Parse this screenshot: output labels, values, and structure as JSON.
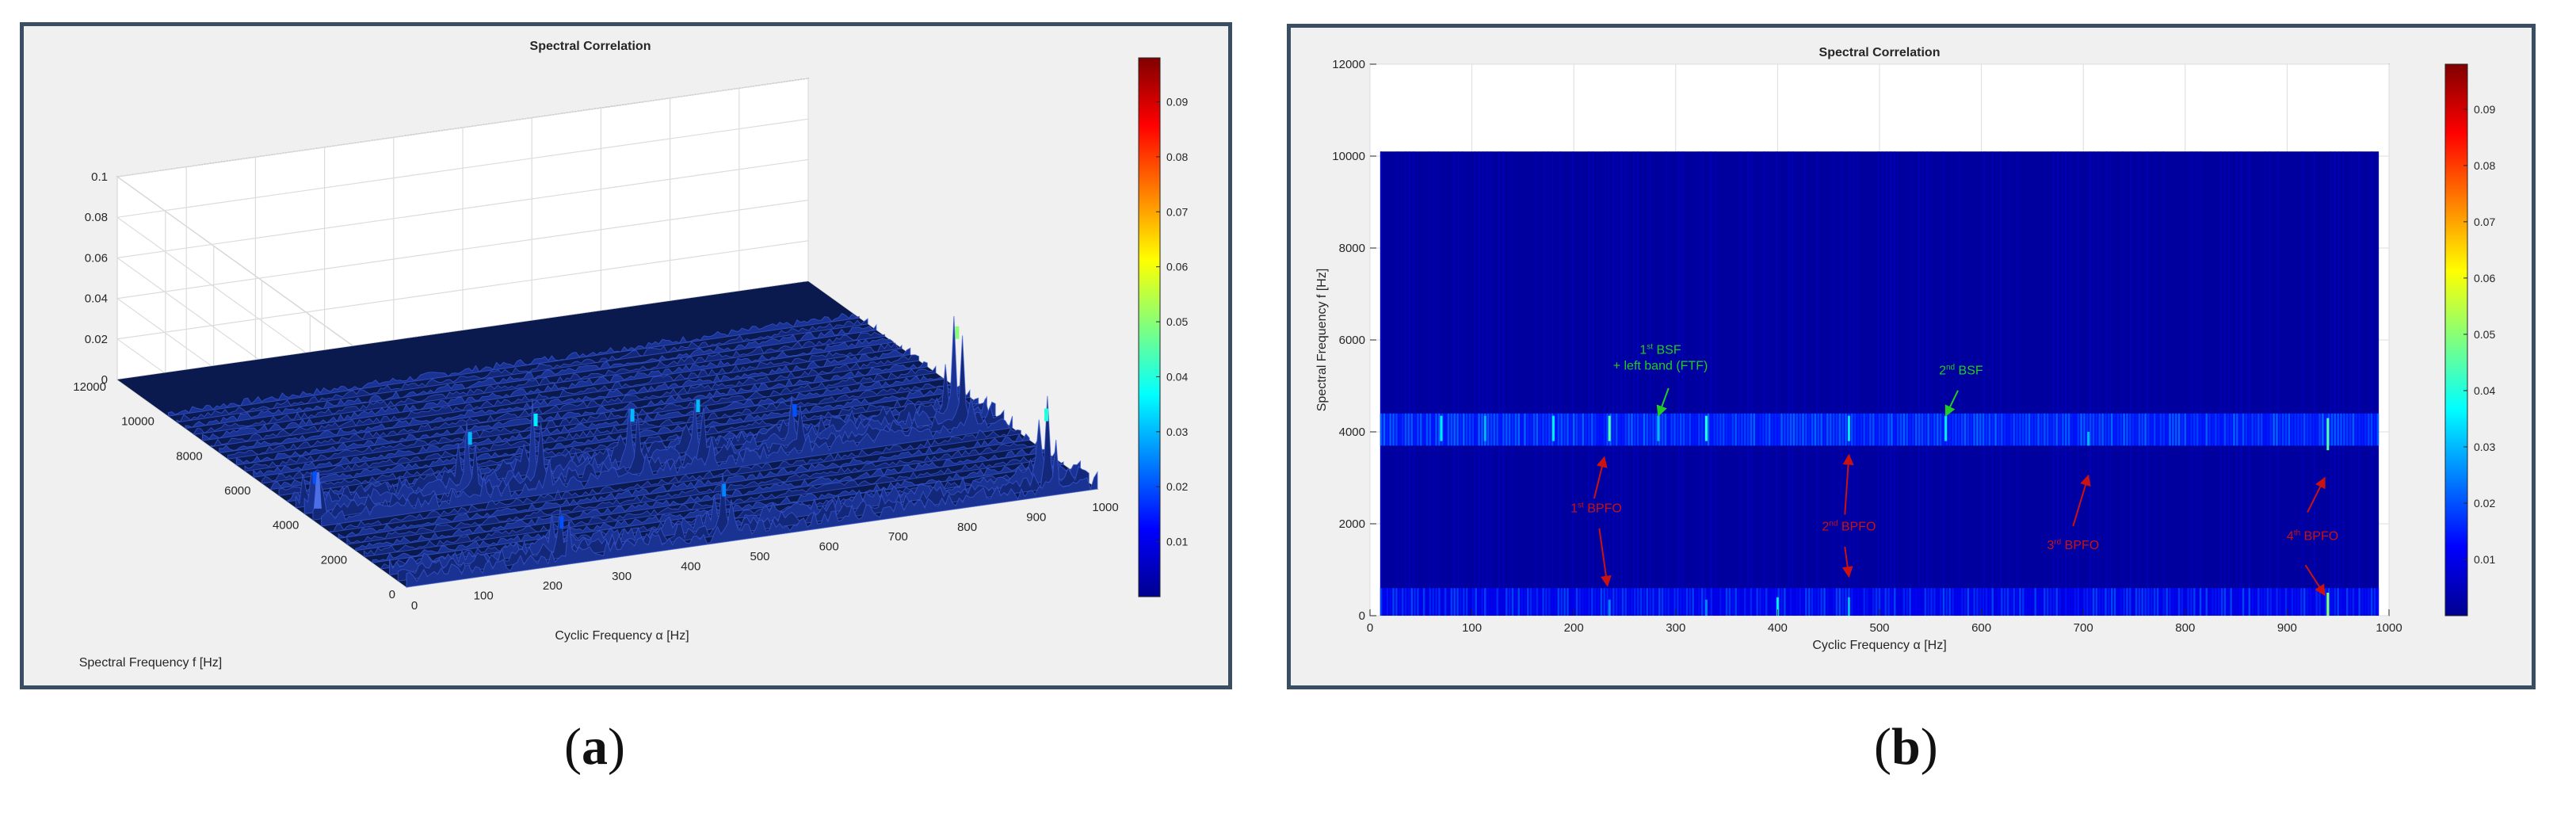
{
  "chart_data": [
    {
      "id": "a",
      "type": "surface3d",
      "title": "Spectral Correlation",
      "xlabel": "Cyclic Frequency α [Hz]",
      "ylabel": "Spectral Frequency f [Hz]",
      "xlim": [
        0,
        1000
      ],
      "ylim": [
        0,
        12000
      ],
      "zlim": [
        0,
        0.1
      ],
      "x_ticks": [
        "0",
        "100",
        "200",
        "300",
        "400",
        "500",
        "600",
        "700",
        "800",
        "900",
        "1000"
      ],
      "y_ticks": [
        "0",
        "2000",
        "4000",
        "6000",
        "8000",
        "10000",
        "12000"
      ],
      "z_ticks": [
        "0",
        "0.02",
        "0.04",
        "0.06",
        "0.08",
        "0.1"
      ],
      "colorbar": {
        "ticks": [
          "0.01",
          "0.02",
          "0.03",
          "0.04",
          "0.05",
          "0.06",
          "0.07",
          "0.08",
          "0.09"
        ],
        "range": [
          0,
          0.098
        ],
        "colormap": "jet"
      },
      "peaks": [
        {
          "alpha": 12,
          "f": 4150,
          "value": 0.02
        },
        {
          "alpha": 235,
          "f": 4100,
          "value": 0.03
        },
        {
          "alpha": 330,
          "f": 4100,
          "value": 0.035
        },
        {
          "alpha": 470,
          "f": 4100,
          "value": 0.03
        },
        {
          "alpha": 565,
          "f": 4100,
          "value": 0.03
        },
        {
          "alpha": 705,
          "f": 4100,
          "value": 0.02
        },
        {
          "alpha": 940,
          "f": 4100,
          "value": 0.05
        },
        {
          "alpha": 235,
          "f": 300,
          "value": 0.02
        },
        {
          "alpha": 470,
          "f": 300,
          "value": 0.025
        },
        {
          "alpha": 940,
          "f": 400,
          "value": 0.04
        }
      ]
    },
    {
      "id": "b",
      "type": "heatmap",
      "title": "Spectral Correlation",
      "xlabel": "Cyclic Frequency α [Hz]",
      "ylabel": "Spectral Frequency f [Hz]",
      "xlim": [
        0,
        1000
      ],
      "ylim": [
        0,
        12000
      ],
      "data_extent": {
        "x": [
          10,
          990
        ],
        "y": [
          0,
          10100
        ]
      },
      "x_ticks": [
        "0",
        "100",
        "200",
        "300",
        "400",
        "500",
        "600",
        "700",
        "800",
        "900",
        "1000"
      ],
      "y_ticks": [
        "0",
        "2000",
        "4000",
        "6000",
        "8000",
        "10000",
        "12000"
      ],
      "colorbar": {
        "ticks": [
          "0.01",
          "0.02",
          "0.03",
          "0.04",
          "0.05",
          "0.06",
          "0.07",
          "0.08",
          "0.09"
        ],
        "range": [
          0,
          0.098
        ],
        "colormap": "jet"
      },
      "bands": [
        {
          "f_from": 3700,
          "f_to": 4400,
          "level": 0.014
        },
        {
          "f_from": 0,
          "f_to": 600,
          "level": 0.01
        }
      ],
      "hot_lines": [
        {
          "alpha": 70,
          "f_from": 3800,
          "f_to": 4350,
          "value": 0.035
        },
        {
          "alpha": 113,
          "f_from": 3800,
          "f_to": 4350,
          "value": 0.03
        },
        {
          "alpha": 180,
          "f_from": 3800,
          "f_to": 4350,
          "value": 0.035
        },
        {
          "alpha": 235,
          "f_from": 3800,
          "f_to": 4350,
          "value": 0.045
        },
        {
          "alpha": 283,
          "f_from": 3800,
          "f_to": 4350,
          "value": 0.03
        },
        {
          "alpha": 330,
          "f_from": 3800,
          "f_to": 4350,
          "value": 0.04
        },
        {
          "alpha": 470,
          "f_from": 3800,
          "f_to": 4350,
          "value": 0.035
        },
        {
          "alpha": 565,
          "f_from": 3800,
          "f_to": 4350,
          "value": 0.035
        },
        {
          "alpha": 705,
          "f_from": 3700,
          "f_to": 4000,
          "value": 0.03
        },
        {
          "alpha": 940,
          "f_from": 3600,
          "f_to": 4300,
          "value": 0.045
        },
        {
          "alpha": 235,
          "f_from": 0,
          "f_to": 350,
          "value": 0.025
        },
        {
          "alpha": 330,
          "f_from": 0,
          "f_to": 350,
          "value": 0.025
        },
        {
          "alpha": 400,
          "f_from": 0,
          "f_to": 400,
          "value": 0.035
        },
        {
          "alpha": 470,
          "f_from": 0,
          "f_to": 400,
          "value": 0.03
        },
        {
          "alpha": 940,
          "f_from": 0,
          "f_to": 500,
          "value": 0.05
        }
      ],
      "annotations": [
        {
          "color": "#22cc22",
          "lines": [
            [
              "1",
              "st",
              " BSF"
            ],
            [
              "+ left band (FTF)"
            ]
          ],
          "text_at": [
            285,
            5700
          ],
          "arrows": [
            {
              "from": [
                293,
                4950
              ],
              "to": [
                283,
                4350
              ]
            }
          ]
        },
        {
          "color": "#22cc22",
          "lines": [
            [
              "2",
              "nd",
              " BSF"
            ]
          ],
          "text_at": [
            580,
            5250
          ],
          "arrows": [
            {
              "from": [
                577,
                4900
              ],
              "to": [
                565,
                4350
              ]
            }
          ]
        },
        {
          "color": "#cc1111",
          "lines": [
            [
              "1",
              "st",
              " BPFO"
            ]
          ],
          "text_at": [
            222,
            2250
          ],
          "arrows": [
            {
              "from": [
                220,
                2550
              ],
              "to": [
                230,
                3450
              ]
            },
            {
              "from": [
                225,
                1900
              ],
              "to": [
                233,
                650
              ]
            }
          ]
        },
        {
          "color": "#cc1111",
          "lines": [
            [
              "2",
              "nd",
              " BPFO"
            ]
          ],
          "text_at": [
            470,
            1850
          ],
          "arrows": [
            {
              "from": [
                466,
                2200
              ],
              "to": [
                470,
                3500
              ]
            },
            {
              "from": [
                466,
                1500
              ],
              "to": [
                470,
                850
              ]
            }
          ]
        },
        {
          "color": "#cc1111",
          "lines": [
            [
              "3",
              "rd",
              " BPFO"
            ]
          ],
          "text_at": [
            690,
            1450
          ],
          "arrows": [
            {
              "from": [
                690,
                1950
              ],
              "to": [
                705,
                3050
              ]
            }
          ]
        },
        {
          "color": "#cc1111",
          "lines": [
            [
              "4",
              "th",
              " BPFO"
            ]
          ],
          "text_at": [
            925,
            1650
          ],
          "arrows": [
            {
              "from": [
                920,
                2250
              ],
              "to": [
                937,
                3000
              ]
            },
            {
              "from": [
                918,
                1100
              ],
              "to": [
                937,
                450
              ]
            }
          ]
        }
      ]
    }
  ],
  "captions": {
    "a": "(a)",
    "b": "(b)",
    "a_letter": "a",
    "b_letter": "b"
  }
}
